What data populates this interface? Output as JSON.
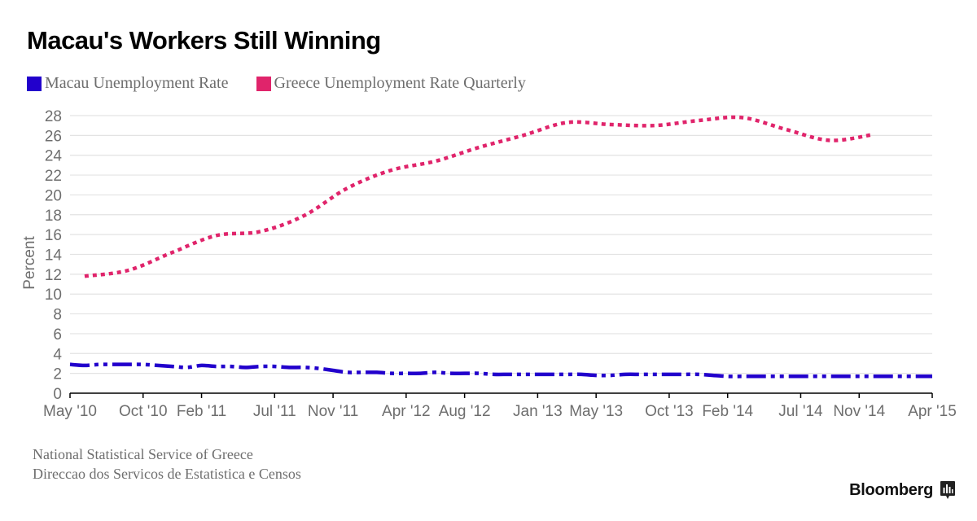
{
  "chart_data": {
    "type": "line",
    "title": "Macau's Workers Still Winning",
    "xlabel": "",
    "ylabel": "Percent",
    "ylim": [
      0,
      28
    ],
    "yticks": [
      0,
      2,
      4,
      6,
      8,
      10,
      12,
      14,
      16,
      18,
      20,
      22,
      24,
      26,
      28
    ],
    "xlim": [
      "2010-05",
      "2015-04"
    ],
    "xticks": [
      {
        "date": "2010-05",
        "label": "May '10"
      },
      {
        "date": "2010-10",
        "label": "Oct '10"
      },
      {
        "date": "2011-02",
        "label": "Feb '11"
      },
      {
        "date": "2011-07",
        "label": "Jul '11"
      },
      {
        "date": "2011-11",
        "label": "Nov '11"
      },
      {
        "date": "2012-04",
        "label": "Apr '12"
      },
      {
        "date": "2012-08",
        "label": "Aug '12"
      },
      {
        "date": "2013-01",
        "label": "Jan '13"
      },
      {
        "date": "2013-05",
        "label": "May '13"
      },
      {
        "date": "2013-10",
        "label": "Oct '13"
      },
      {
        "date": "2014-02",
        "label": "Feb '14"
      },
      {
        "date": "2014-07",
        "label": "Jul '14"
      },
      {
        "date": "2014-11",
        "label": "Nov '14"
      },
      {
        "date": "2015-04",
        "label": "Apr '15"
      }
    ],
    "grid": true,
    "legend_position": "top-left",
    "series": [
      {
        "name": "Macau Unemployment Rate",
        "color": "#2200cc",
        "style": "dash-dot",
        "x": [
          "2010-05",
          "2010-06",
          "2010-07",
          "2010-08",
          "2010-09",
          "2010-10",
          "2010-11",
          "2010-12",
          "2011-01",
          "2011-02",
          "2011-03",
          "2011-04",
          "2011-05",
          "2011-06",
          "2011-07",
          "2011-08",
          "2011-09",
          "2011-10",
          "2011-11",
          "2011-12",
          "2012-01",
          "2012-02",
          "2012-03",
          "2012-04",
          "2012-05",
          "2012-06",
          "2012-07",
          "2012-08",
          "2012-09",
          "2012-10",
          "2012-11",
          "2012-12",
          "2013-01",
          "2013-02",
          "2013-03",
          "2013-04",
          "2013-05",
          "2013-06",
          "2013-07",
          "2013-08",
          "2013-09",
          "2013-10",
          "2013-11",
          "2013-12",
          "2014-01",
          "2014-02",
          "2014-03",
          "2014-04",
          "2014-05",
          "2014-06",
          "2014-07",
          "2014-08",
          "2014-09",
          "2014-10",
          "2014-11",
          "2014-12",
          "2015-01",
          "2015-02",
          "2015-03",
          "2015-04"
        ],
        "values": [
          2.9,
          2.8,
          2.9,
          2.9,
          2.9,
          2.9,
          2.8,
          2.7,
          2.6,
          2.8,
          2.7,
          2.7,
          2.6,
          2.7,
          2.7,
          2.6,
          2.6,
          2.5,
          2.3,
          2.1,
          2.1,
          2.1,
          2.0,
          2.0,
          2.0,
          2.1,
          2.0,
          2.0,
          2.0,
          1.9,
          1.9,
          1.9,
          1.9,
          1.9,
          1.9,
          1.9,
          1.8,
          1.8,
          1.9,
          1.9,
          1.9,
          1.9,
          1.9,
          1.9,
          1.8,
          1.7,
          1.7,
          1.7,
          1.7,
          1.7,
          1.7,
          1.7,
          1.7,
          1.7,
          1.7,
          1.7,
          1.7,
          1.7,
          1.7,
          1.7
        ]
      },
      {
        "name": "Greece Unemployment Rate Quarterly",
        "color": "#e0246b",
        "style": "dotted",
        "x": [
          "2010-06",
          "2010-09",
          "2010-12",
          "2011-03",
          "2011-06",
          "2011-09",
          "2011-12",
          "2012-03",
          "2012-06",
          "2012-09",
          "2012-12",
          "2013-03",
          "2013-06",
          "2013-09",
          "2013-12",
          "2014-03",
          "2014-06",
          "2014-09",
          "2014-12"
        ],
        "values": [
          11.8,
          12.4,
          14.2,
          15.9,
          16.3,
          17.9,
          20.7,
          22.5,
          23.4,
          24.8,
          26.0,
          27.3,
          27.1,
          27.0,
          27.5,
          27.8,
          26.6,
          25.5,
          26.1
        ]
      }
    ],
    "source": [
      "National Statistical Service of Greece",
      "Direccao dos Servicos de Estatistica e Censos"
    ]
  },
  "header": {
    "title": "Macau's Workers Still Winning"
  },
  "legend": {
    "items": [
      {
        "label": "Macau Unemployment Rate",
        "color": "#2200cc"
      },
      {
        "label": "Greece Unemployment Rate Quarterly",
        "color": "#e0246b"
      }
    ]
  },
  "footer": {
    "sources": [
      "National Statistical Service of Greece",
      "Direccao dos Servicos de Estatistica e Censos"
    ],
    "brand": "Bloomberg",
    "brand_icon": "bloomberg-chart-icon"
  }
}
